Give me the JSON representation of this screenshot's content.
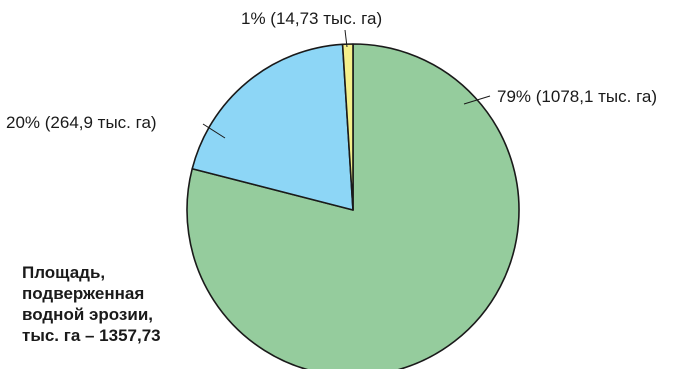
{
  "chart_data": {
    "type": "pie",
    "slices": [
      {
        "value": 79,
        "label": "79% (1078,1 тыс. га)",
        "color": "#95cc9d"
      },
      {
        "value": 20,
        "label": "20% (264,9 тыс. га)",
        "color": "#8dd6f6"
      },
      {
        "value": 1,
        "label": "1% (14,73 тыс. га)",
        "color": "#f4f08b"
      }
    ],
    "start": "12 o'clock",
    "direction": "clockwise",
    "outline_color": "#1a1a1a",
    "caption_lines": [
      "Площадь,",
      "подверженная",
      "водной эрозии,",
      "тыс. га – 1357,73"
    ]
  }
}
